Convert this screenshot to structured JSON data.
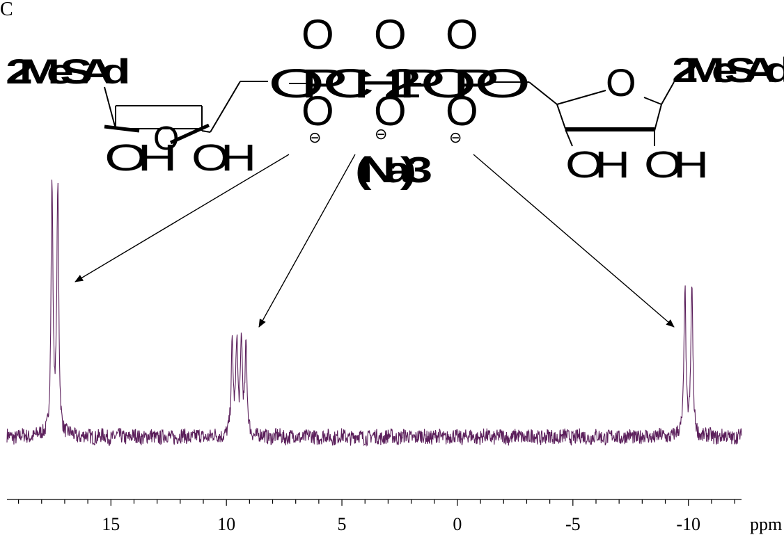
{
  "figure_label": "C",
  "structure": {
    "left_sugar": {
      "base_label": "2MeSAd",
      "ring_oxygen": "O",
      "hydroxyl_1": "OH",
      "hydroxyl_2": "OH"
    },
    "right_sugar": {
      "base_label": "2MeSAd",
      "ring_oxygen": "O",
      "hydroxyl_1": "OH",
      "hydroxyl_2": "OH"
    },
    "bridge": "O P CH2 P O P O",
    "top_oxygens": [
      "O",
      "O",
      "O"
    ],
    "bottom_oxygens": [
      "O",
      "O",
      "O"
    ],
    "charges": [
      "⊖",
      "⊖",
      "⊖"
    ],
    "counterion": "(Na)3"
  },
  "chart_data": {
    "type": "line",
    "xlabel": "",
    "x_unit": "ppm",
    "x_reversed": true,
    "xlim": [
      19.5,
      -12.3
    ],
    "x_major_ticks": [
      15,
      10,
      5,
      0,
      -5,
      -10
    ],
    "x_tick_labels": [
      "15",
      "10",
      "5",
      "0",
      "-5",
      "-10"
    ],
    "x_minor_step": 1,
    "grid": false,
    "line_color": "#5b1f5b",
    "baseline_noise_amplitude": 0.03,
    "peaks": [
      {
        "assignment": "left phosphorus",
        "lines": [
          {
            "x": 17.55,
            "height": 1.0
          },
          {
            "x": 17.3,
            "height": 0.98
          }
        ],
        "width": 0.05
      },
      {
        "assignment": "middle phosphorus",
        "lines": [
          {
            "x": 9.75,
            "height": 0.36
          },
          {
            "x": 9.55,
            "height": 0.38
          },
          {
            "x": 9.35,
            "height": 0.38
          },
          {
            "x": 9.15,
            "height": 0.35
          }
        ],
        "width": 0.05
      },
      {
        "assignment": "right phosphorus",
        "lines": [
          {
            "x": -9.85,
            "height": 0.6
          },
          {
            "x": -10.15,
            "height": 0.6
          }
        ],
        "width": 0.05
      }
    ]
  }
}
